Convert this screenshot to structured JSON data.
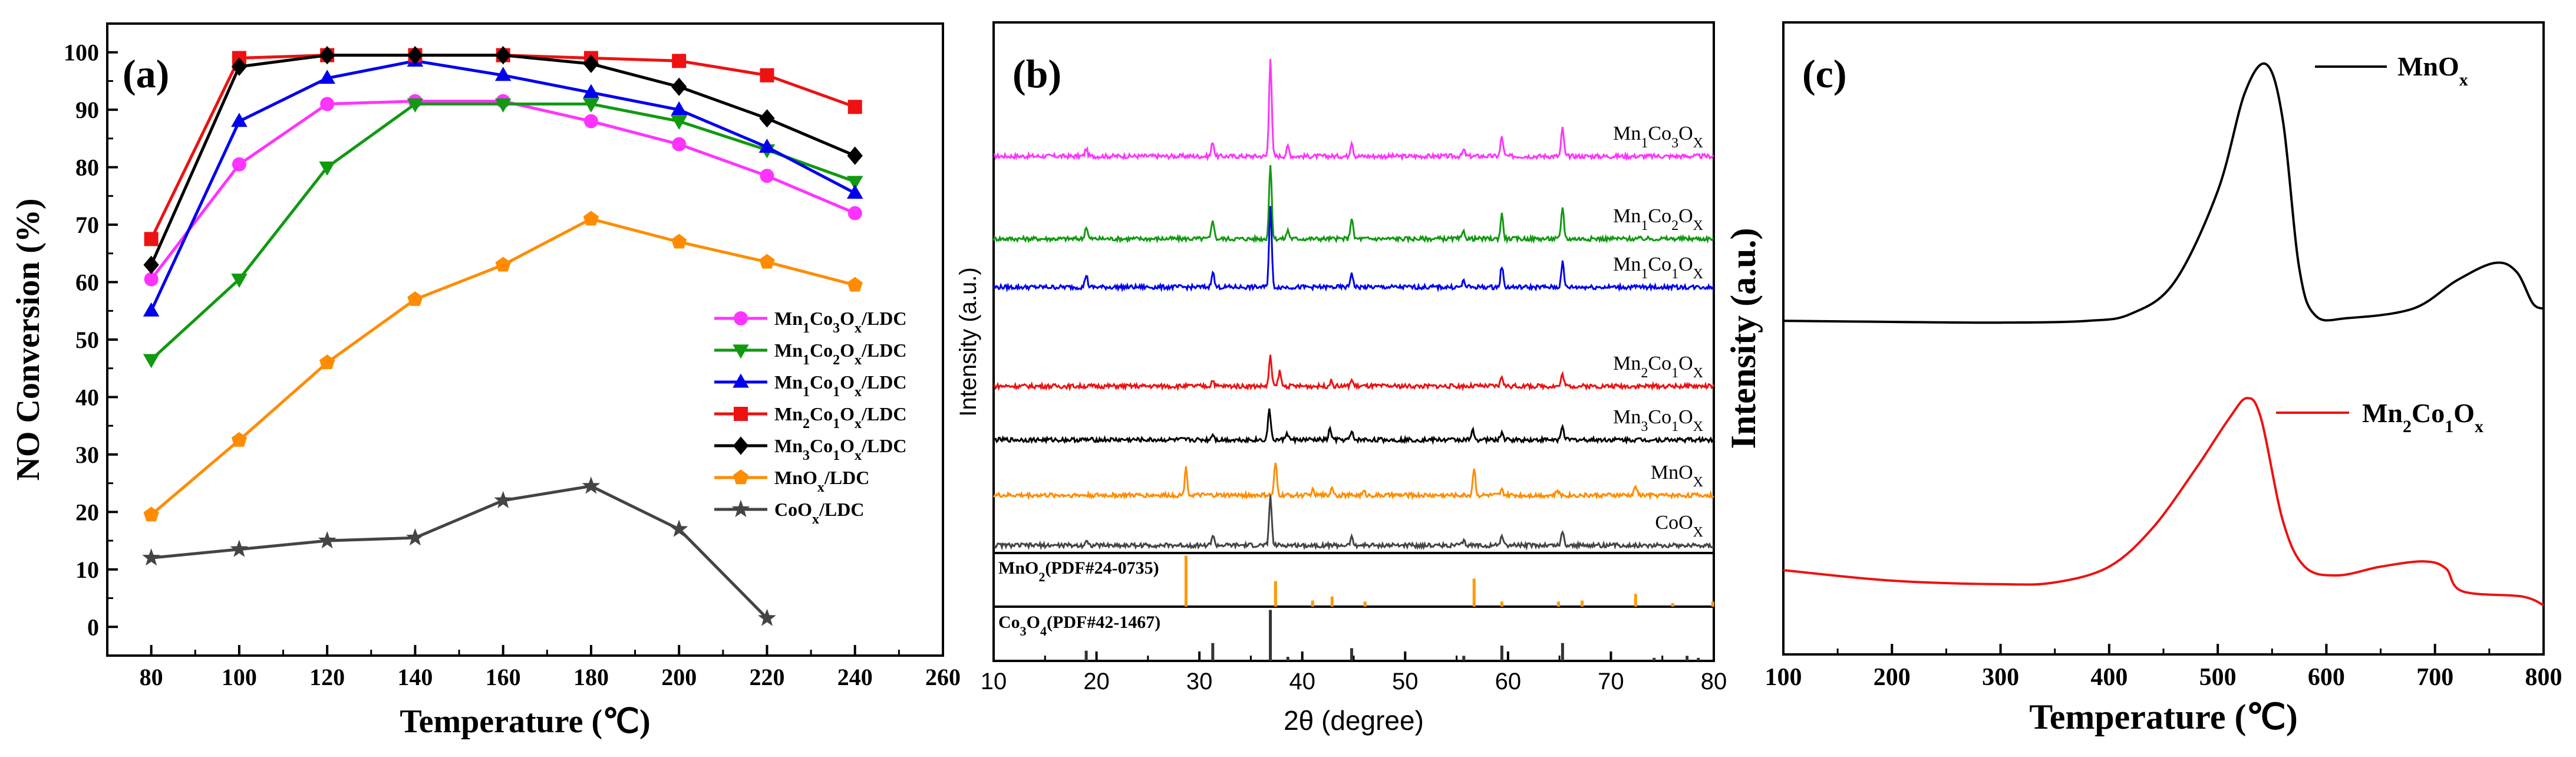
{
  "chart_data": [
    {
      "panel": "(a)",
      "type": "line",
      "xlabel": "Temperature (℃)",
      "ylabel": "NO Conversion (%)",
      "xlim": [
        70,
        260
      ],
      "ylim": [
        -5,
        105
      ],
      "xticks": [
        80,
        100,
        120,
        140,
        160,
        180,
        200,
        220,
        240,
        260
      ],
      "yticks": [
        0,
        10,
        20,
        30,
        40,
        50,
        60,
        70,
        80,
        90,
        100
      ],
      "legend_position": "center-right",
      "series": [
        {
          "name": "Mn1Co3Ox/LDC",
          "legend_html": "Mn<tspan baseline-shift=\"sub\" font-size=\"24\">1</tspan>Co<tspan baseline-shift=\"sub\" font-size=\"24\">3</tspan>O<tspan baseline-shift=\"sub\" font-size=\"24\">x</tspan>/LDC",
          "color": "#ff33ff",
          "marker": "circle",
          "x": [
            80,
            100,
            120,
            140,
            160,
            180,
            200,
            220,
            240
          ],
          "y": [
            60.5,
            80.5,
            91,
            91.5,
            91.5,
            88,
            84,
            78.5,
            72
          ]
        },
        {
          "name": "Mn1Co2Ox/LDC",
          "legend_html": "Mn<tspan baseline-shift=\"sub\" font-size=\"24\">1</tspan>Co<tspan baseline-shift=\"sub\" font-size=\"24\">2</tspan>O<tspan baseline-shift=\"sub\" font-size=\"24\">x</tspan>/LDC",
          "color": "#119911",
          "marker": "triangle-down",
          "x": [
            80,
            100,
            120,
            140,
            160,
            180,
            200,
            220,
            240
          ],
          "y": [
            46.5,
            60.5,
            80,
            91,
            91,
            91,
            88,
            83,
            77.5
          ]
        },
        {
          "name": "Mn1Co1Ox/LDC",
          "legend_html": "Mn<tspan baseline-shift=\"sub\" font-size=\"24\">1</tspan>Co<tspan baseline-shift=\"sub\" font-size=\"24\">1</tspan>O<tspan baseline-shift=\"sub\" font-size=\"24\">x</tspan>/LDC",
          "color": "#0000ee",
          "marker": "triangle-up",
          "x": [
            80,
            100,
            120,
            140,
            160,
            180,
            200,
            220,
            240
          ],
          "y": [
            55,
            88,
            95.5,
            98.5,
            96,
            93,
            90,
            83.5,
            75.5
          ]
        },
        {
          "name": "Mn2Co1Ox/LDC",
          "legend_html": "Mn<tspan baseline-shift=\"sub\" font-size=\"24\">2</tspan>Co<tspan baseline-shift=\"sub\" font-size=\"24\">1</tspan>O<tspan baseline-shift=\"sub\" font-size=\"24\">x</tspan>/LDC",
          "color": "#ee1111",
          "marker": "square",
          "x": [
            80,
            100,
            120,
            140,
            160,
            180,
            200,
            220,
            240
          ],
          "y": [
            67.5,
            99,
            99.5,
            99.5,
            99.5,
            99,
            98.5,
            96,
            90.5
          ]
        },
        {
          "name": "Mn3Co1Ox/LDC",
          "legend_html": "Mn<tspan baseline-shift=\"sub\" font-size=\"24\">3</tspan>Co<tspan baseline-shift=\"sub\" font-size=\"24\">1</tspan>O<tspan baseline-shift=\"sub\" font-size=\"24\">x</tspan>/LDC",
          "color": "#000000",
          "marker": "diamond",
          "x": [
            80,
            100,
            120,
            140,
            160,
            180,
            200,
            220,
            240
          ],
          "y": [
            63,
            97.5,
            99.5,
            99.5,
            99.5,
            98,
            94,
            88.5,
            82
          ]
        },
        {
          "name": "MnOx/LDC",
          "legend_html": "MnO<tspan baseline-shift=\"sub\" font-size=\"24\">x</tspan>/LDC",
          "color": "#ff8c00",
          "marker": "pentagon",
          "x": [
            80,
            100,
            120,
            140,
            160,
            180,
            200,
            220,
            240
          ],
          "y": [
            19.5,
            32.5,
            46,
            57,
            63,
            71,
            67,
            63.5,
            59.5
          ]
        },
        {
          "name": "CoOx/LDC",
          "legend_html": "CoO<tspan baseline-shift=\"sub\" font-size=\"24\">x</tspan>/LDC",
          "color": "#444444",
          "marker": "star",
          "x": [
            80,
            100,
            120,
            140,
            160,
            180,
            200,
            220
          ],
          "y": [
            12,
            13.5,
            15,
            15.5,
            22,
            24.5,
            17,
            1.5
          ]
        }
      ]
    },
    {
      "panel": "(b)",
      "type": "line",
      "xlabel": "2θ (degree)",
      "ylabel": "Intensity (a.u.)",
      "xlim": [
        10,
        80
      ],
      "xticks": [
        10,
        20,
        30,
        40,
        50,
        60,
        70,
        80
      ],
      "curves": [
        {
          "name": "Mn1Co3Ox",
          "label_html": "Mn<tspan baseline-shift=\"sub\" font-size=\"24\">1</tspan>Co<tspan baseline-shift=\"sub\" font-size=\"24\">3</tspan>O<tspan baseline-shift=\"sub\" font-size=\"24\">X</tspan>",
          "color": "#ff33ff",
          "offset": 6,
          "peaks": [
            [
              19,
              0.6
            ],
            [
              31.3,
              1.2
            ],
            [
              36.9,
              8
            ],
            [
              38.6,
              0.8
            ],
            [
              44.8,
              1.2
            ],
            [
              55.7,
              0.5
            ],
            [
              59.4,
              1.6
            ],
            [
              65.3,
              2.3
            ]
          ]
        },
        {
          "name": "Mn1Co2Ox",
          "label_html": "Mn<tspan baseline-shift=\"sub\" font-size=\"24\">1</tspan>Co<tspan baseline-shift=\"sub\" font-size=\"24\">2</tspan>O<tspan baseline-shift=\"sub\" font-size=\"24\">X</tspan>",
          "color": "#119911",
          "offset": 5,
          "peaks": [
            [
              19,
              1
            ],
            [
              31.3,
              1.6
            ],
            [
              36.9,
              6
            ],
            [
              38.6,
              0.7
            ],
            [
              44.8,
              1.7
            ],
            [
              55.7,
              0.6
            ],
            [
              59.4,
              2
            ],
            [
              65.3,
              2.6
            ]
          ]
        },
        {
          "name": "Mn1Co1Ox",
          "label_html": "Mn<tspan baseline-shift=\"sub\" font-size=\"24\">1</tspan>Co<tspan baseline-shift=\"sub\" font-size=\"24\">1</tspan>O<tspan baseline-shift=\"sub\" font-size=\"24\">X</tspan>",
          "color": "#0000ee",
          "offset": 4,
          "peaks": [
            [
              19,
              1
            ],
            [
              31.3,
              1.3
            ],
            [
              36.9,
              6.5
            ],
            [
              44.8,
              1.2
            ],
            [
              55.7,
              0.5
            ],
            [
              59.4,
              1.7
            ],
            [
              65.3,
              2
            ]
          ]
        },
        {
          "name": "Mn2Co1Ox",
          "label_html": "Mn<tspan baseline-shift=\"sub\" font-size=\"24\">2</tspan>Co<tspan baseline-shift=\"sub\" font-size=\"24\">1</tspan>O<tspan baseline-shift=\"sub\" font-size=\"24\">X</tspan>",
          "color": "#ee1111",
          "offset": 3,
          "peaks": [
            [
              31.3,
              0.5
            ],
            [
              36.9,
              2.4
            ],
            [
              37.8,
              1.2
            ],
            [
              42.8,
              0.4
            ],
            [
              44.8,
              0.5
            ],
            [
              59.4,
              0.8
            ],
            [
              65.3,
              1
            ]
          ]
        },
        {
          "name": "Mn3Co1Ox",
          "label_html": "Mn<tspan baseline-shift=\"sub\" font-size=\"24\">3</tspan>Co<tspan baseline-shift=\"sub\" font-size=\"24\">1</tspan>O<tspan baseline-shift=\"sub\" font-size=\"24\">X</tspan>",
          "color": "#000000",
          "offset": 2,
          "peaks": [
            [
              31.3,
              0.5
            ],
            [
              36.8,
              2.6
            ],
            [
              38.5,
              0.6
            ],
            [
              42.7,
              0.9
            ],
            [
              44.8,
              0.6
            ],
            [
              56.6,
              0.8
            ],
            [
              59.4,
              0.6
            ],
            [
              65.3,
              1.2
            ]
          ]
        },
        {
          "name": "MnOx",
          "label_html": "MnO<tspan baseline-shift=\"sub\" font-size=\"24\">X</tspan>",
          "color": "#ff8c00",
          "offset": 1,
          "peaks": [
            [
              28.7,
              2.2
            ],
            [
              37.4,
              2.6
            ],
            [
              41,
              0.4
            ],
            [
              42.9,
              0.7
            ],
            [
              46,
              0.3
            ],
            [
              56.7,
              2.2
            ],
            [
              59.4,
              0.4
            ],
            [
              64.8,
              0.4
            ],
            [
              72.4,
              0.8
            ]
          ]
        },
        {
          "name": "CoOx",
          "label_html": "CoO<tspan baseline-shift=\"sub\" font-size=\"24\">X</tspan>",
          "color": "#444444",
          "offset": 0,
          "peaks": [
            [
              19,
              0.4
            ],
            [
              31.3,
              0.8
            ],
            [
              36.9,
              4
            ],
            [
              44.8,
              0.6
            ],
            [
              55.7,
              0.3
            ],
            [
              59.4,
              0.9
            ],
            [
              65.3,
              1.1
            ]
          ]
        }
      ],
      "references": [
        {
          "name": "MnO2(PDF#24-0735)",
          "label_html": "MnO<tspan baseline-shift=\"sub\" font-size=\"22\">2</tspan>(PDF#24-0735)",
          "color": "#ff9900",
          "lines": [
            [
              28.7,
              1
            ],
            [
              37.4,
              0.5
            ],
            [
              41,
              0.12
            ],
            [
              42.9,
              0.2
            ],
            [
              46.1,
              0.1
            ],
            [
              56.7,
              0.55
            ],
            [
              59.4,
              0.1
            ],
            [
              64.9,
              0.1
            ],
            [
              67.2,
              0.12
            ],
            [
              72.4,
              0.25
            ],
            [
              76,
              0.07
            ],
            [
              79.9,
              0.1
            ]
          ]
        },
        {
          "name": "Co3O4(PDF#42-1467)",
          "label_html": "Co<tspan baseline-shift=\"sub\" font-size=\"22\">3</tspan>O<tspan baseline-shift=\"sub\" font-size=\"22\">4</tspan>(PDF#42-1467)",
          "color": "#333333",
          "lines": [
            [
              19,
              0.2
            ],
            [
              31.3,
              0.35
            ],
            [
              36.9,
              1
            ],
            [
              38.6,
              0.08
            ],
            [
              44.8,
              0.25
            ],
            [
              55.7,
              0.1
            ],
            [
              59.4,
              0.3
            ],
            [
              65.3,
              0.35
            ],
            [
              74.2,
              0.06
            ],
            [
              77.4,
              0.1
            ],
            [
              78.5,
              0.06
            ]
          ]
        }
      ]
    },
    {
      "panel": "(c)",
      "type": "line",
      "xlabel": "Temperature (℃)",
      "ylabel": "Intensity (a.u.)",
      "xlim": [
        100,
        800
      ],
      "xticks": [
        100,
        200,
        300,
        400,
        500,
        600,
        700,
        800
      ],
      "series": [
        {
          "name": "MnOx",
          "label_html": "MnO<tspan baseline-shift=\"sub\" font-size=\"30\">x</tspan>",
          "color": "#000000",
          "baseline": 0.15,
          "points": [
            [
              100,
              0.15
            ],
            [
              200,
              0.147
            ],
            [
              300,
              0.145
            ],
            [
              380,
              0.15
            ],
            [
              420,
              0.17
            ],
            [
              460,
              0.26
            ],
            [
              500,
              0.52
            ],
            [
              525,
              0.8
            ],
            [
              545,
              0.88
            ],
            [
              560,
              0.72
            ],
            [
              575,
              0.3
            ],
            [
              590,
              0.165
            ],
            [
              620,
              0.158
            ],
            [
              680,
              0.185
            ],
            [
              720,
              0.265
            ],
            [
              755,
              0.315
            ],
            [
              775,
              0.29
            ],
            [
              790,
              0.2
            ],
            [
              800,
              0.185
            ]
          ]
        },
        {
          "name": "Mn2Co1Ox",
          "label_html": "Mn<tspan baseline-shift=\"sub\" font-size=\"30\">2</tspan>Co<tspan baseline-shift=\"sub\" font-size=\"30\">1</tspan>O<tspan baseline-shift=\"sub\" font-size=\"30\">x</tspan>",
          "color": "#ee1111",
          "points": [
            [
              100,
              -0.56
            ],
            [
              200,
              -0.59
            ],
            [
              300,
              -0.6
            ],
            [
              350,
              -0.595
            ],
            [
              400,
              -0.55
            ],
            [
              440,
              -0.44
            ],
            [
              480,
              -0.27
            ],
            [
              510,
              -0.13
            ],
            [
              527,
              -0.07
            ],
            [
              540,
              -0.13
            ],
            [
              560,
              -0.42
            ],
            [
              580,
              -0.55
            ],
            [
              610,
              -0.575
            ],
            [
              650,
              -0.55
            ],
            [
              690,
              -0.535
            ],
            [
              710,
              -0.555
            ],
            [
              725,
              -0.62
            ],
            [
              780,
              -0.635
            ],
            [
              800,
              -0.66
            ]
          ]
        }
      ]
    }
  ],
  "panels": {
    "a": {
      "tag": "(a)"
    },
    "b": {
      "tag": "(b)"
    },
    "c": {
      "tag": "(c)"
    }
  }
}
